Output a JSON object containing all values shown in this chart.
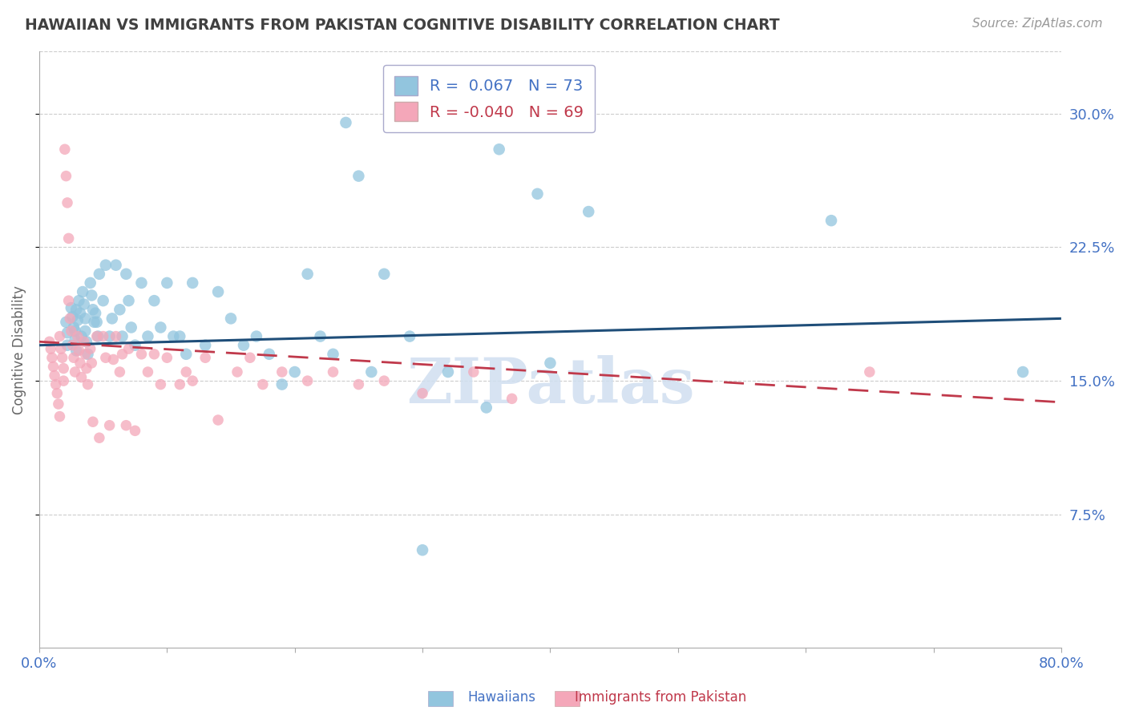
{
  "title": "HAWAIIAN VS IMMIGRANTS FROM PAKISTAN COGNITIVE DISABILITY CORRELATION CHART",
  "source": "Source: ZipAtlas.com",
  "ylabel": "Cognitive Disability",
  "yticks": [
    0.075,
    0.15,
    0.225,
    0.3
  ],
  "ytick_labels": [
    "7.5%",
    "15.0%",
    "22.5%",
    "30.0%"
  ],
  "xlim": [
    0.0,
    0.8
  ],
  "ylim": [
    0.0,
    0.335
  ],
  "hawaiians_R": 0.067,
  "hawaiians_N": 73,
  "pakistan_R": -0.04,
  "pakistan_N": 69,
  "blue_color": "#92c5de",
  "pink_color": "#f4a7b9",
  "trend_blue": "#1f4e79",
  "trend_pink": "#c0394b",
  "background_color": "#ffffff",
  "grid_color": "#cccccc",
  "title_color": "#404040",
  "axis_color": "#4472c4",
  "watermark_color": "#d0dff0",
  "h_trend_start": 0.17,
  "h_trend_end": 0.185,
  "p_trend_start": 0.172,
  "p_trend_end": 0.138,
  "hawaiians_x": [
    0.021,
    0.022,
    0.022,
    0.025,
    0.026,
    0.027,
    0.028,
    0.028,
    0.029,
    0.029,
    0.03,
    0.031,
    0.032,
    0.033,
    0.034,
    0.035,
    0.036,
    0.036,
    0.037,
    0.038,
    0.04,
    0.041,
    0.042,
    0.043,
    0.044,
    0.045,
    0.046,
    0.047,
    0.05,
    0.052,
    0.055,
    0.057,
    0.06,
    0.063,
    0.065,
    0.068,
    0.07,
    0.072,
    0.075,
    0.08,
    0.085,
    0.09,
    0.095,
    0.1,
    0.105,
    0.11,
    0.115,
    0.12,
    0.13,
    0.14,
    0.15,
    0.16,
    0.17,
    0.18,
    0.19,
    0.2,
    0.21,
    0.22,
    0.23,
    0.24,
    0.25,
    0.26,
    0.27,
    0.29,
    0.3,
    0.32,
    0.35,
    0.36,
    0.39,
    0.4,
    0.43,
    0.62,
    0.77
  ],
  "hawaiians_y": [
    0.183,
    0.177,
    0.17,
    0.191,
    0.186,
    0.18,
    0.178,
    0.173,
    0.167,
    0.19,
    0.184,
    0.195,
    0.188,
    0.175,
    0.2,
    0.193,
    0.185,
    0.178,
    0.172,
    0.165,
    0.205,
    0.198,
    0.19,
    0.183,
    0.188,
    0.183,
    0.175,
    0.21,
    0.195,
    0.215,
    0.175,
    0.185,
    0.215,
    0.19,
    0.175,
    0.21,
    0.195,
    0.18,
    0.17,
    0.205,
    0.175,
    0.195,
    0.18,
    0.205,
    0.175,
    0.175,
    0.165,
    0.205,
    0.17,
    0.2,
    0.185,
    0.17,
    0.175,
    0.165,
    0.148,
    0.155,
    0.21,
    0.175,
    0.165,
    0.295,
    0.265,
    0.155,
    0.21,
    0.175,
    0.055,
    0.155,
    0.135,
    0.28,
    0.255,
    0.16,
    0.245,
    0.24,
    0.155
  ],
  "pakistan_x": [
    0.008,
    0.009,
    0.01,
    0.011,
    0.012,
    0.013,
    0.014,
    0.015,
    0.016,
    0.016,
    0.017,
    0.018,
    0.019,
    0.019,
    0.02,
    0.021,
    0.022,
    0.023,
    0.023,
    0.024,
    0.025,
    0.026,
    0.027,
    0.028,
    0.03,
    0.031,
    0.032,
    0.033,
    0.035,
    0.036,
    0.037,
    0.038,
    0.04,
    0.041,
    0.042,
    0.045,
    0.047,
    0.05,
    0.052,
    0.055,
    0.058,
    0.06,
    0.063,
    0.065,
    0.068,
    0.07,
    0.075,
    0.08,
    0.085,
    0.09,
    0.095,
    0.1,
    0.11,
    0.115,
    0.12,
    0.13,
    0.14,
    0.155,
    0.165,
    0.175,
    0.19,
    0.21,
    0.23,
    0.25,
    0.27,
    0.3,
    0.34,
    0.37,
    0.65
  ],
  "pakistan_y": [
    0.172,
    0.168,
    0.163,
    0.158,
    0.153,
    0.148,
    0.143,
    0.137,
    0.13,
    0.175,
    0.168,
    0.163,
    0.157,
    0.15,
    0.28,
    0.265,
    0.25,
    0.23,
    0.195,
    0.185,
    0.178,
    0.17,
    0.163,
    0.155,
    0.175,
    0.167,
    0.16,
    0.152,
    0.172,
    0.165,
    0.157,
    0.148,
    0.168,
    0.16,
    0.127,
    0.175,
    0.118,
    0.175,
    0.163,
    0.125,
    0.162,
    0.175,
    0.155,
    0.165,
    0.125,
    0.168,
    0.122,
    0.165,
    0.155,
    0.165,
    0.148,
    0.163,
    0.148,
    0.155,
    0.15,
    0.163,
    0.128,
    0.155,
    0.163,
    0.148,
    0.155,
    0.15,
    0.155,
    0.148,
    0.15,
    0.143,
    0.155,
    0.14,
    0.155
  ]
}
